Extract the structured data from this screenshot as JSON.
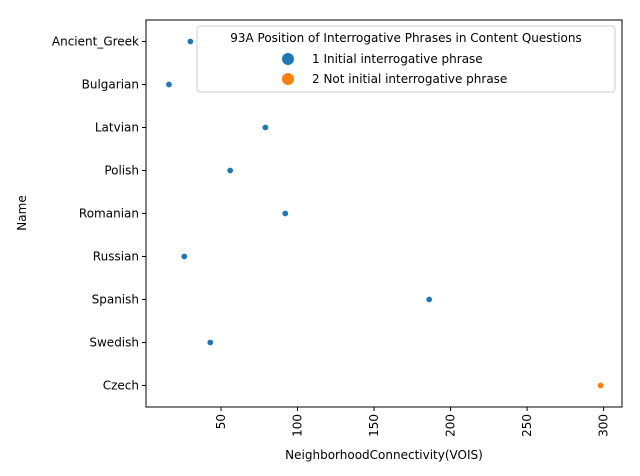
{
  "chart_data": {
    "type": "scatter",
    "xlabel": "NeighborhoodConnectivity(VOIS)",
    "ylabel": "Name",
    "xlim": [
      1,
      312
    ],
    "xticks": [
      50,
      100,
      150,
      200,
      250,
      300
    ],
    "x_tick_rotation": 90,
    "categories": [
      "Ancient_Greek",
      "Bulgarian",
      "Latvian",
      "Polish",
      "Romanian",
      "Russian",
      "Spanish",
      "Swedish",
      "Czech"
    ],
    "grid": false,
    "legend": {
      "title": "93A Position of Interrogative Phrases in Content Questions",
      "placement": "top-right"
    },
    "series": [
      {
        "name": "1 Initial interrogative phrase",
        "color": "#1f77b4",
        "points": [
          {
            "y": "Ancient_Greek",
            "x": 30
          },
          {
            "y": "Bulgarian",
            "x": 16
          },
          {
            "y": "Latvian",
            "x": 79
          },
          {
            "y": "Polish",
            "x": 56
          },
          {
            "y": "Romanian",
            "x": 92
          },
          {
            "y": "Russian",
            "x": 26
          },
          {
            "y": "Spanish",
            "x": 186
          },
          {
            "y": "Swedish",
            "x": 43
          }
        ]
      },
      {
        "name": "2 Not initial interrogative phrase",
        "color": "#ff7f0e",
        "points": [
          {
            "y": "Czech",
            "x": 298
          }
        ]
      }
    ]
  }
}
